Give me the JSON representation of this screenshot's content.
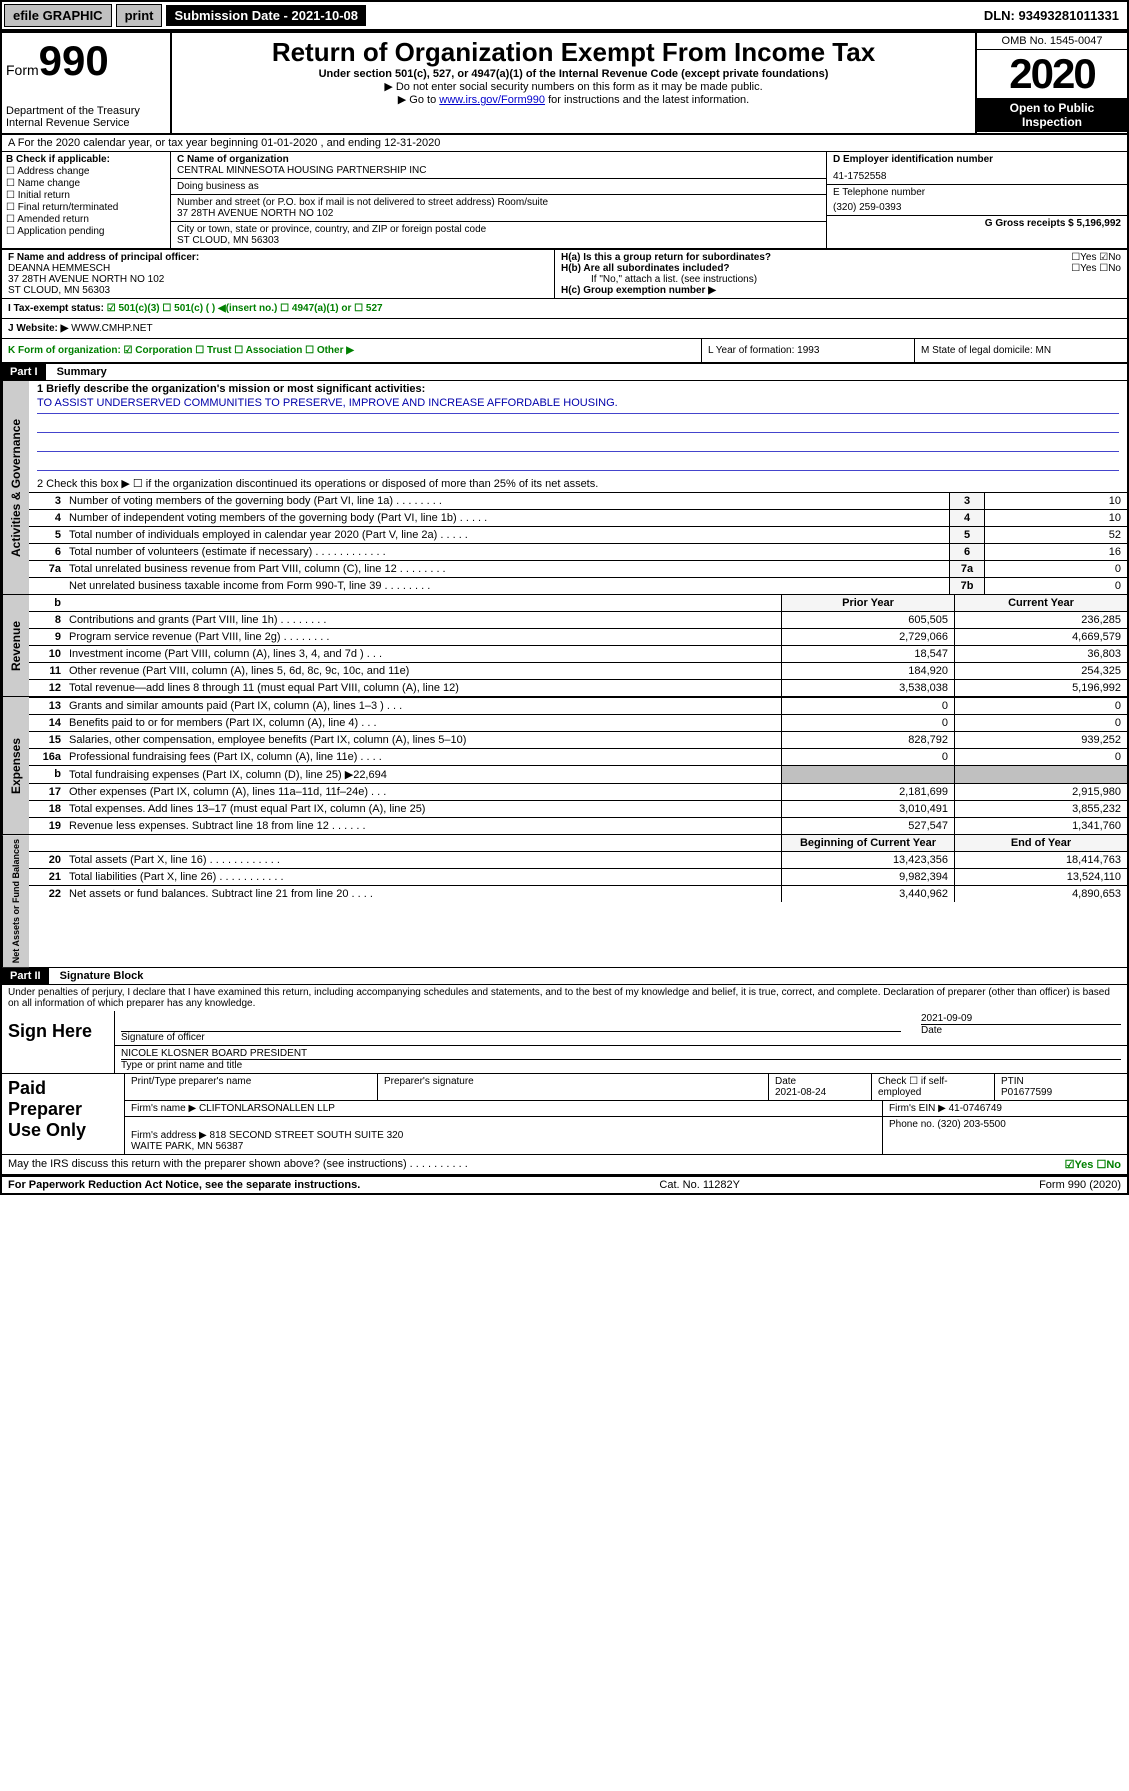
{
  "topbar": {
    "efile": "efile GRAPHIC",
    "print": "print",
    "subdate_label": "Submission Date - 2021-10-08",
    "dln": "DLN: 93493281011331"
  },
  "header": {
    "form_prefix": "Form",
    "form_no": "990",
    "title": "Return of Organization Exempt From Income Tax",
    "subtitle": "Under section 501(c), 527, or 4947(a)(1) of the Internal Revenue Code (except private foundations)",
    "note1": "▶ Do not enter social security numbers on this form as it may be made public.",
    "note2_pre": "▶ Go to ",
    "note2_link": "www.irs.gov/Form990",
    "note2_post": " for instructions and the latest information.",
    "dept": "Department of the Treasury\nInternal Revenue Service",
    "omb": "OMB No. 1545-0047",
    "year": "2020",
    "open": "Open to Public Inspection"
  },
  "row_a": "A For the 2020 calendar year, or tax year beginning 01-01-2020   , and ending 12-31-2020",
  "col_b": {
    "label": "B Check if applicable:",
    "opts": [
      "Address change",
      "Name change",
      "Initial return",
      "Final return/terminated",
      "Amended return",
      "Application pending"
    ]
  },
  "col_c": {
    "name_label": "C Name of organization",
    "name": "CENTRAL MINNESOTA HOUSING PARTNERSHIP INC",
    "dba_label": "Doing business as",
    "addr_label": "Number and street (or P.O. box if mail is not delivered to street address)   Room/suite",
    "addr": "37 28TH AVENUE NORTH NO 102",
    "city_label": "City or town, state or province, country, and ZIP or foreign postal code",
    "city": "ST CLOUD, MN  56303"
  },
  "col_d": {
    "ein_label": "D Employer identification number",
    "ein": "41-1752558",
    "tel_label": "E Telephone number",
    "tel": "(320) 259-0393",
    "gross_label": "G Gross receipts $ 5,196,992"
  },
  "row_f": {
    "label": "F  Name and address of principal officer:",
    "name": "DEANNA HEMMESCH",
    "addr": "37 28TH AVENUE NORTH NO 102\nST CLOUD, MN  56303"
  },
  "row_h": {
    "a": "H(a)  Is this a group return for subordinates?",
    "a_ans": "☐Yes ☑No",
    "b": "H(b)  Are all subordinates included?",
    "b_ans": "☐Yes ☐No",
    "b_note": "If \"No,\" attach a list. (see instructions)",
    "c": "H(c)  Group exemption number ▶"
  },
  "row_i": {
    "label": "I  Tax-exempt status:",
    "opts": "☑ 501(c)(3)   ☐ 501(c) (  ) ◀(insert no.)   ☐ 4947(a)(1) or  ☐ 527"
  },
  "row_j": {
    "label": "J  Website: ▶",
    "val": "WWW.CMHP.NET"
  },
  "row_k": {
    "label": "K Form of organization:  ☑ Corporation  ☐ Trust  ☐ Association  ☐ Other ▶",
    "l": "L Year of formation: 1993",
    "m": "M State of legal domicile: MN"
  },
  "part1": {
    "title": "Part I",
    "summary": "Summary",
    "q1_label": "1  Briefly describe the organization's mission or most significant activities:",
    "q1_val": "TO ASSIST UNDERSERVED COMMUNITIES TO PRESERVE, IMPROVE AND INCREASE AFFORDABLE HOUSING.",
    "q2": "2  Check this box ▶ ☐  if the organization discontinued its operations or disposed of more than 25% of its net assets."
  },
  "gov_lines": [
    {
      "n": "3",
      "d": "Number of voting members of the governing body (Part VI, line 1a)  .  .  .  .  .  .  .  .",
      "b": "3",
      "v": "10"
    },
    {
      "n": "4",
      "d": "Number of independent voting members of the governing body (Part VI, line 1b)  .  .  .  .  .",
      "b": "4",
      "v": "10"
    },
    {
      "n": "5",
      "d": "Total number of individuals employed in calendar year 2020 (Part V, line 2a)  .  .  .  .  .",
      "b": "5",
      "v": "52"
    },
    {
      "n": "6",
      "d": "Total number of volunteers (estimate if necessary)  .  .  .  .  .  .  .  .  .  .  .  .",
      "b": "6",
      "v": "16"
    },
    {
      "n": "7a",
      "d": "Total unrelated business revenue from Part VIII, column (C), line 12  .  .  .  .  .  .  .  .",
      "b": "7a",
      "v": "0"
    },
    {
      "n": "",
      "d": "Net unrelated business taxable income from Form 990-T, line 39  .  .  .  .  .  .  .  .",
      "b": "7b",
      "v": "0"
    }
  ],
  "rev_header": {
    "prior": "Prior Year",
    "curr": "Current Year"
  },
  "rev_lines": [
    {
      "n": "8",
      "d": "Contributions and grants (Part VIII, line 1h)  .  .  .  .  .  .  .  .",
      "p": "605,505",
      "c": "236,285"
    },
    {
      "n": "9",
      "d": "Program service revenue (Part VIII, line 2g)  .  .  .  .  .  .  .  .",
      "p": "2,729,066",
      "c": "4,669,579"
    },
    {
      "n": "10",
      "d": "Investment income (Part VIII, column (A), lines 3, 4, and 7d )  .  .  .",
      "p": "18,547",
      "c": "36,803"
    },
    {
      "n": "11",
      "d": "Other revenue (Part VIII, column (A), lines 5, 6d, 8c, 9c, 10c, and 11e)",
      "p": "184,920",
      "c": "254,325"
    },
    {
      "n": "12",
      "d": "Total revenue—add lines 8 through 11 (must equal Part VIII, column (A), line 12)",
      "p": "3,538,038",
      "c": "5,196,992"
    }
  ],
  "exp_lines": [
    {
      "n": "13",
      "d": "Grants and similar amounts paid (Part IX, column (A), lines 1–3 )  .  .  .",
      "p": "0",
      "c": "0"
    },
    {
      "n": "14",
      "d": "Benefits paid to or for members (Part IX, column (A), line 4)  .  .  .",
      "p": "0",
      "c": "0"
    },
    {
      "n": "15",
      "d": "Salaries, other compensation, employee benefits (Part IX, column (A), lines 5–10)",
      "p": "828,792",
      "c": "939,252"
    },
    {
      "n": "16a",
      "d": "Professional fundraising fees (Part IX, column (A), line 11e)  .  .  .  .",
      "p": "0",
      "c": "0"
    },
    {
      "n": "b",
      "d": "Total fundraising expenses (Part IX, column (D), line 25) ▶22,694",
      "p": "",
      "c": "",
      "shade": true
    },
    {
      "n": "17",
      "d": "Other expenses (Part IX, column (A), lines 11a–11d, 11f–24e)  .  .  .",
      "p": "2,181,699",
      "c": "2,915,980"
    },
    {
      "n": "18",
      "d": "Total expenses. Add lines 13–17 (must equal Part IX, column (A), line 25)",
      "p": "3,010,491",
      "c": "3,855,232"
    },
    {
      "n": "19",
      "d": "Revenue less expenses. Subtract line 18 from line 12  .  .  .  .  .  .",
      "p": "527,547",
      "c": "1,341,760"
    }
  ],
  "na_header": {
    "beg": "Beginning of Current Year",
    "end": "End of Year"
  },
  "na_lines": [
    {
      "n": "20",
      "d": "Total assets (Part X, line 16)  .  .  .  .  .  .  .  .  .  .  .  .",
      "p": "13,423,356",
      "c": "18,414,763"
    },
    {
      "n": "21",
      "d": "Total liabilities (Part X, line 26)  .  .  .  .  .  .  .  .  .  .  .",
      "p": "9,982,394",
      "c": "13,524,110"
    },
    {
      "n": "22",
      "d": "Net assets or fund balances. Subtract line 21 from line 20  .  .  .  .",
      "p": "3,440,962",
      "c": "4,890,653"
    }
  ],
  "part2": {
    "title": "Part II",
    "label": "Signature Block",
    "decl": "Under penalties of perjury, I declare that I have examined this return, including accompanying schedules and statements, and to the best of my knowledge and belief, it is true, correct, and complete. Declaration of preparer (other than officer) is based on all information of which preparer has any knowledge."
  },
  "sign": {
    "here": "Sign Here",
    "sig_of": "Signature of officer",
    "date": "2021-09-09",
    "date_label": "Date",
    "name": "NICOLE KLOSNER  BOARD PRESIDENT",
    "name_label": "Type or print name and title"
  },
  "paid": {
    "label": "Paid Preparer Use Only",
    "h1": "Print/Type preparer's name",
    "h2": "Preparer's signature",
    "h3": "Date",
    "h3v": "2021-08-24",
    "h4": "Check ☐ if self-employed",
    "h5": "PTIN",
    "h5v": "P01677599",
    "firm_label": "Firm's name    ▶",
    "firm": "CLIFTONLARSONALLEN LLP",
    "ein_label": "Firm's EIN ▶ 41-0746749",
    "addr_label": "Firm's address ▶",
    "addr": "818 SECOND STREET SOUTH SUITE 320\nWAITE PARK, MN  56387",
    "phone": "Phone no. (320) 203-5500"
  },
  "discuss": {
    "q": "May the IRS discuss this return with the preparer shown above? (see instructions)  .  .  .  .  .  .  .  .  .  .",
    "ans": "☑Yes  ☐No"
  },
  "footer": {
    "left": "For Paperwork Reduction Act Notice, see the separate instructions.",
    "mid": "Cat. No. 11282Y",
    "right": "Form 990 (2020)"
  },
  "vtabs": {
    "gov": "Activities & Governance",
    "rev": "Revenue",
    "exp": "Expenses",
    "na": "Net Assets or Fund Balances"
  }
}
